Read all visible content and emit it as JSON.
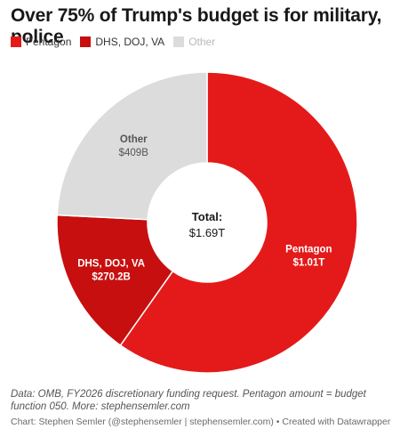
{
  "chart_data": {
    "type": "pie",
    "title": "Over 75% of Trump's budget is for military, police",
    "categories": [
      "Pentagon",
      "DHS, DOJ, VA",
      "Other"
    ],
    "values": [
      1010,
      270.2,
      409
    ],
    "value_labels": [
      "$1.01T",
      "$270.2B",
      "$409B"
    ],
    "colors": [
      "#e41a1a",
      "#c70f0f",
      "#dcdcdc"
    ],
    "label_colors": [
      "#ffffff",
      "#ffffff",
      "#555555"
    ],
    "legend_placement": "top-left",
    "center_label": {
      "title": "Total:",
      "value": "$1.69T"
    }
  },
  "notes": "Data: OMB, FY2026 discretionary funding request. Pentagon amount = budget function 050. More: stephensemler.com",
  "byline": "Chart: Stephen Semler (@stephensemler | stephensemler.com) • Created with Datawrapper"
}
